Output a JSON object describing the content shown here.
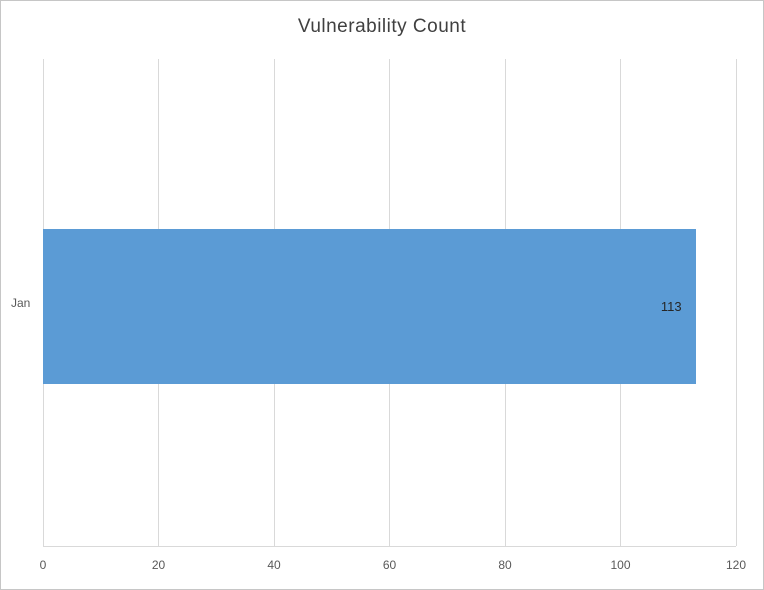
{
  "chart_data": {
    "type": "bar",
    "orientation": "horizontal",
    "title": "Vulnerability  Count",
    "categories": [
      "Jan"
    ],
    "values": [
      113
    ],
    "data_labels": [
      "113"
    ],
    "xlabel": "",
    "ylabel": "",
    "xlim": [
      0,
      120
    ],
    "xticks": [
      0,
      20,
      40,
      60,
      80,
      100,
      120
    ],
    "grid": true,
    "legend": false,
    "bar_color": "#5b9bd5",
    "gridline_color": "#d9d9d9",
    "title_color": "#404040",
    "tick_label_color": "#595959"
  }
}
